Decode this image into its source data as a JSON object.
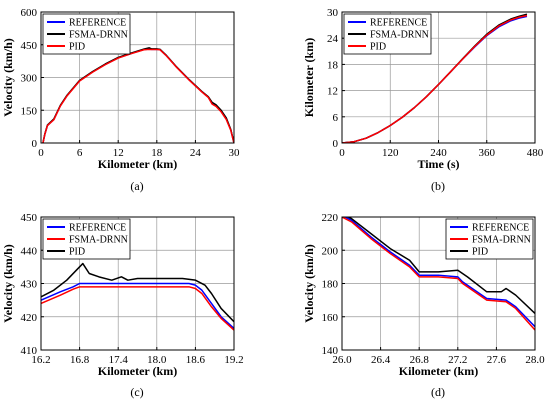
{
  "chart_data": [
    {
      "type": "line",
      "xlabel": "Kilometer (km)",
      "ylabel": "Velocity (km/h)",
      "caption": "(a)",
      "xlim": [
        0,
        30
      ],
      "ylim": [
        0,
        600
      ],
      "xticks": [
        0,
        6,
        12,
        18,
        24,
        30
      ],
      "yticks": [
        0,
        150,
        300,
        450,
        600
      ],
      "legend": "top-left",
      "series": [
        {
          "name": "REFERENCE",
          "color": "#0000ff",
          "x": [
            0.3,
            0.6,
            1.0,
            2,
            3,
            4,
            6,
            8,
            10,
            12,
            14,
            16,
            16.8,
            17.2,
            18,
            18.5,
            19.5,
            21,
            23,
            25,
            26,
            26.6,
            27.2,
            28,
            28.8,
            29.5,
            30
          ],
          "y": [
            0,
            40,
            80,
            108,
            170,
            215,
            285,
            325,
            360,
            390,
            410,
            428,
            430,
            429,
            429,
            428,
            400,
            350,
            290,
            235,
            210,
            180,
            170,
            145,
            110,
            60,
            0
          ]
        },
        {
          "name": "FSMA-DRNN",
          "color": "#000000",
          "x": [
            0.3,
            0.6,
            1.0,
            2,
            3,
            4,
            6,
            8,
            10,
            12,
            14,
            16,
            16.8,
            17.2,
            18,
            18.5,
            19.5,
            21,
            23,
            25,
            26,
            26.6,
            27.2,
            28,
            28.8,
            29.5,
            30
          ],
          "y": [
            0,
            42,
            82,
            110,
            172,
            217,
            287,
            327,
            362,
            392,
            412,
            430,
            436,
            431,
            431,
            429,
            401,
            351,
            291,
            236,
            212,
            186,
            175,
            150,
            115,
            62,
            0
          ]
        },
        {
          "name": "PID",
          "color": "#ff0000",
          "x": [
            0.3,
            0.6,
            1.0,
            2,
            3,
            4,
            6,
            8,
            10,
            12,
            14,
            16,
            16.8,
            17.2,
            18,
            18.5,
            19.5,
            21,
            23,
            25,
            26,
            26.6,
            27.2,
            28,
            28.8,
            29.5,
            30
          ],
          "y": [
            0,
            40,
            80,
            107,
            169,
            214,
            284,
            324,
            359,
            389,
            409,
            427,
            429,
            428,
            428,
            427,
            399,
            349,
            289,
            234,
            209,
            178,
            168,
            143,
            108,
            58,
            0
          ]
        }
      ]
    },
    {
      "type": "line",
      "xlabel": "Time (s)",
      "ylabel": "Kilometer (km)",
      "caption": "(b)",
      "xlim": [
        0,
        480
      ],
      "ylim": [
        0,
        30
      ],
      "xticks": [
        0,
        120,
        240,
        360,
        480
      ],
      "yticks": [
        0,
        6,
        12,
        18,
        24,
        30
      ],
      "legend": "top-left",
      "series": [
        {
          "name": "REFERENCE",
          "color": "#0000ff",
          "x": [
            0,
            30,
            60,
            90,
            120,
            150,
            180,
            210,
            240,
            270,
            300,
            330,
            360,
            390,
            420,
            440,
            460
          ],
          "y": [
            0,
            0.3,
            1.1,
            2.4,
            4.0,
            5.9,
            8.1,
            10.6,
            13.4,
            16.3,
            19.2,
            22.0,
            24.6,
            26.6,
            28.0,
            28.6,
            29.0
          ]
        },
        {
          "name": "FSMA-DRNN",
          "color": "#000000",
          "x": [
            0,
            30,
            60,
            90,
            120,
            150,
            180,
            210,
            240,
            270,
            300,
            330,
            360,
            390,
            420,
            440,
            460
          ],
          "y": [
            0,
            0.3,
            1.1,
            2.4,
            4.0,
            5.9,
            8.1,
            10.6,
            13.4,
            16.3,
            19.3,
            22.2,
            24.9,
            27.0,
            28.4,
            29.0,
            29.5
          ]
        },
        {
          "name": "PID",
          "color": "#ff0000",
          "x": [
            0,
            30,
            60,
            90,
            120,
            150,
            180,
            210,
            240,
            270,
            300,
            330,
            360,
            390,
            420,
            440,
            460
          ],
          "y": [
            0,
            0.3,
            1.1,
            2.4,
            4.0,
            5.9,
            8.1,
            10.6,
            13.4,
            16.3,
            19.2,
            22.1,
            24.7,
            26.8,
            28.2,
            28.8,
            29.2
          ]
        }
      ]
    },
    {
      "type": "line",
      "xlabel": "Kilometer (km)",
      "ylabel": "Velocity (km/h)",
      "caption": "(c)",
      "xlim": [
        16.2,
        19.2
      ],
      "ylim": [
        410,
        450
      ],
      "xticks": [
        16.2,
        16.8,
        17.4,
        18.0,
        18.6,
        19.2
      ],
      "yticks": [
        410,
        420,
        430,
        440,
        450
      ],
      "legend": "top-left",
      "series": [
        {
          "name": "REFERENCE",
          "color": "#0000ff",
          "x": [
            16.2,
            16.5,
            16.7,
            16.8,
            17.0,
            17.4,
            17.8,
            18.2,
            18.5,
            18.6,
            18.7,
            18.85,
            19.0,
            19.2
          ],
          "y": [
            425,
            427.5,
            429,
            430,
            430,
            430,
            430,
            430,
            430,
            429.5,
            428,
            424,
            420,
            416.5
          ]
        },
        {
          "name": "FSMA-DRNN",
          "color": "#ff0000",
          "x": [
            16.2,
            16.5,
            16.7,
            16.8,
            17.0,
            17.4,
            17.8,
            18.2,
            18.5,
            18.6,
            18.7,
            18.85,
            19.0,
            19.2
          ],
          "y": [
            424,
            426.5,
            428.3,
            429,
            429,
            429,
            429,
            429,
            429,
            428.5,
            427,
            423,
            419.5,
            416
          ]
        },
        {
          "name": "PID",
          "color": "#000000",
          "x": [
            16.2,
            16.4,
            16.6,
            16.75,
            16.85,
            16.95,
            17.1,
            17.3,
            17.45,
            17.55,
            17.7,
            18.0,
            18.4,
            18.6,
            18.75,
            18.85,
            19.0,
            19.2
          ],
          "y": [
            426,
            428,
            431,
            434,
            436,
            433,
            432,
            431,
            432,
            431,
            431.5,
            431.5,
            431.5,
            431,
            429.5,
            427,
            422.5,
            418.5
          ]
        }
      ]
    },
    {
      "type": "line",
      "xlabel": "Kilometer (km)",
      "ylabel": "Velocity (km/h)",
      "caption": "(d)",
      "xlim": [
        26.0,
        28.0
      ],
      "ylim": [
        140,
        220
      ],
      "xticks": [
        26.0,
        26.4,
        26.8,
        27.2,
        27.6,
        28.0
      ],
      "yticks": [
        140,
        160,
        180,
        200,
        220
      ],
      "legend": "top-right",
      "series": [
        {
          "name": "REFERENCE",
          "color": "#0000ff",
          "x": [
            26.0,
            26.1,
            26.3,
            26.5,
            26.7,
            26.8,
            27.0,
            27.2,
            27.25,
            27.4,
            27.5,
            27.7,
            27.8,
            28.0
          ],
          "y": [
            221,
            218,
            208,
            199,
            191,
            185,
            185,
            184,
            181,
            175,
            171,
            170,
            166,
            154
          ]
        },
        {
          "name": "FSMA-DRNN",
          "color": "#ff0000",
          "x": [
            26.0,
            26.1,
            26.3,
            26.5,
            26.7,
            26.8,
            27.0,
            27.2,
            27.25,
            27.4,
            27.5,
            27.7,
            27.8,
            28.0
          ],
          "y": [
            220,
            217,
            207,
            198,
            190,
            184,
            184,
            183,
            180,
            174,
            170,
            169,
            165,
            152
          ]
        },
        {
          "name": "PID",
          "color": "#000000",
          "x": [
            26.0,
            26.1,
            26.3,
            26.5,
            26.7,
            26.8,
            27.0,
            27.2,
            27.3,
            27.5,
            27.55,
            27.65,
            27.7,
            27.8,
            28.0
          ],
          "y": [
            222,
            219,
            210,
            201,
            194,
            187,
            187,
            188,
            184,
            175,
            175,
            175,
            177,
            173,
            162
          ]
        }
      ]
    }
  ]
}
